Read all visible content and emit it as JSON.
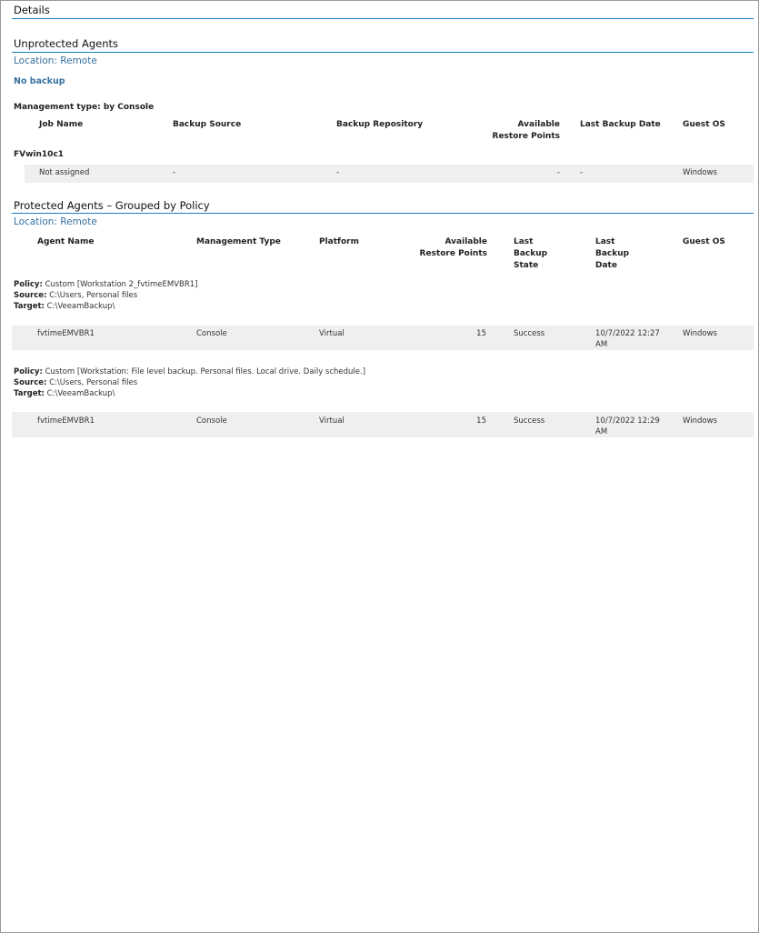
{
  "details_title": "Details",
  "unprotected": {
    "title": "Unprotected Agents",
    "location": "Location: Remote",
    "status": "No backup",
    "management_type": "Management type: by Console",
    "columns": [
      "Job Name",
      "Backup Source",
      "Backup Repository",
      "Available Restore Points",
      "Last Backup Date",
      "Guest OS"
    ],
    "groups": [
      {
        "name": "FVwin10c1",
        "rows": [
          {
            "job_name": "Not assigned",
            "backup_source": "-",
            "backup_repository": "-",
            "restore_points": "-",
            "last_backup_date": "-",
            "guest_os": "Windows"
          }
        ]
      }
    ]
  },
  "protected": {
    "title": "Protected Agents – Grouped by Policy",
    "location": "Location: Remote",
    "columns": [
      "Agent Name",
      "Management Type",
      "Platform",
      "Available Restore Points",
      "Last Backup State",
      "Last Backup Date",
      "Guest OS"
    ],
    "policies": [
      {
        "policy_label": "Policy:",
        "policy": "Custom [Workstation 2_fvtimeEMVBR1]",
        "source_label": "Source:",
        "source": "C:\\Users, Personal files",
        "target_label": "Target:",
        "target": "C:\\VeeamBackup\\",
        "row": {
          "agent_name": "fvtimeEMVBR1",
          "management_type": "Console",
          "platform": "Virtual",
          "restore_points": "15",
          "last_backup_state": "Success",
          "last_backup_date": "10/7/2022 12:27 AM",
          "guest_os": "Windows"
        }
      },
      {
        "policy_label": "Policy:",
        "policy": "Custom [Workstation: File level backup. Personal files. Local drive. Daily schedule.]",
        "source_label": "Source:",
        "source": "C:\\Users, Personal files",
        "target_label": "Target:",
        "target": "C:\\VeeamBackup\\",
        "row": {
          "agent_name": "fvtimeEMVBR1",
          "management_type": "Console",
          "platform": "Virtual",
          "restore_points": "15",
          "last_backup_state": "Success",
          "last_backup_date": "10/7/2022 12:29 AM",
          "guest_os": "Windows"
        }
      }
    ]
  }
}
